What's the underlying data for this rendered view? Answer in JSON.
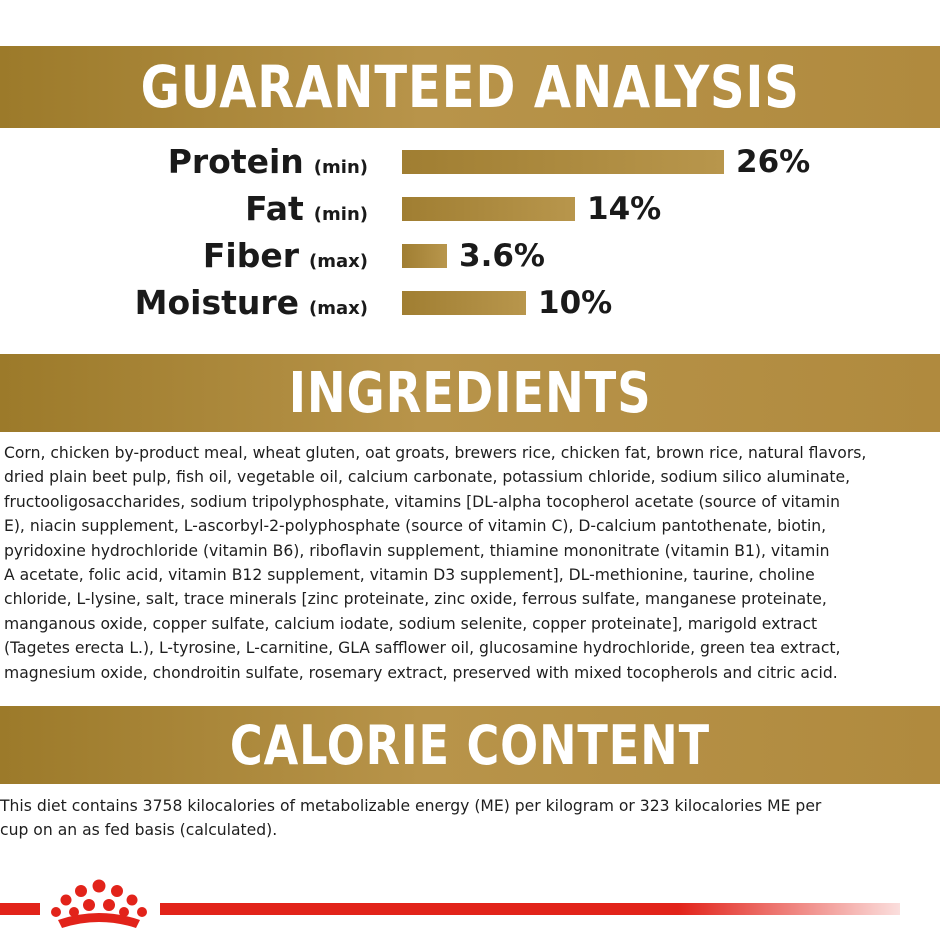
{
  "sections": {
    "guaranteed_analysis": "GUARANTEED ANALYSIS",
    "ingredients": "INGREDIENTS",
    "calorie_content": "CALORIE CONTENT"
  },
  "analysis": [
    {
      "name": "Protein",
      "qualifier": "(min)",
      "value_text": "26%",
      "value": 26
    },
    {
      "name": "Fat",
      "qualifier": "(min)",
      "value_text": "14%",
      "value": 14
    },
    {
      "name": "Fiber",
      "qualifier": "(max)",
      "value_text": "3.6%",
      "value": 3.6
    },
    {
      "name": "Moisture",
      "qualifier": "(max)",
      "value_text": "10%",
      "value": 10
    }
  ],
  "ingredients_lines": [
    "Corn, chicken by-product meal, wheat gluten, oat groats, brewers rice, chicken fat, brown rice, natural flavors,",
    "dried plain beet pulp, fish oil, vegetable oil, calcium carbonate, potassium chloride, sodium silico aluminate,",
    "fructooligosaccharides, sodium tripolyphosphate, vitamins [DL-alpha tocopherol acetate (source of vitamin",
    "E), niacin supplement, L-ascorbyl-2-polyphosphate (source of vitamin C), D-calcium pantothenate, biotin,",
    "pyridoxine hydrochloride (vitamin B6), riboflavin supplement, thiamine mononitrate (vitamin B1), vitamin",
    "A acetate, folic acid, vitamin B12 supplement, vitamin D3 supplement], DL-methionine, taurine, choline",
    "chloride, L-lysine, salt, trace minerals [zinc proteinate, zinc oxide, ferrous sulfate, manganese proteinate,",
    "manganous oxide, copper sulfate, calcium iodate, sodium selenite, copper proteinate], marigold extract",
    "(Tagetes erecta L.), L-tyrosine, L-carnitine, GLA safflower oil, glucosamine hydrochloride, green tea extract,",
    "magnesium oxide, chondroitin sulfate, rosemary extract, preserved with mixed tocopherols and citric acid."
  ],
  "calorie_lines": [
    "This diet contains 3758 kilocalories of metabolizable energy (ME) per kilogram or 323 kilocalories ME per",
    "cup on an as fed basis (calculated)."
  ],
  "colors": {
    "band_gold": "#b08a3e",
    "bar_gold": "#a88637",
    "brand_red": "#e2231a"
  },
  "logo": "royal-canin-crown-icon"
}
